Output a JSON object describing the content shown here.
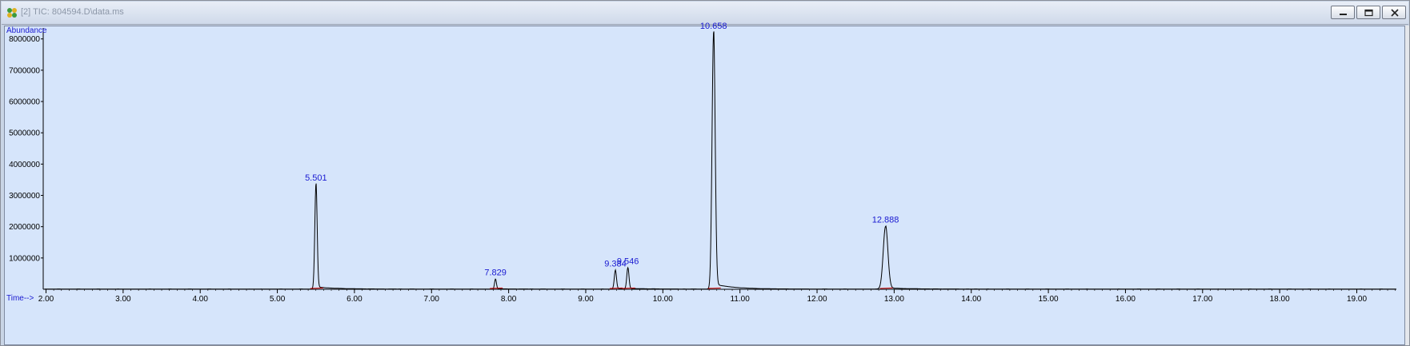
{
  "window": {
    "title": "[2] TIC: 804594.D\\data.ms",
    "icon": "chromatogram-app-icon",
    "controls": [
      "minimize-icon",
      "restore-icon",
      "close-icon"
    ]
  },
  "chart_data": {
    "type": "line",
    "ylabel": "Abundance",
    "xlabel": "Time-->",
    "xlim": [
      1.9,
      20.1
    ],
    "ylim": [
      0,
      8350000
    ],
    "x_ticks": [
      2.0,
      3.0,
      4.0,
      5.0,
      6.0,
      7.0,
      8.0,
      9.0,
      10.0,
      11.0,
      12.0,
      13.0,
      14.0,
      15.0,
      16.0,
      17.0,
      18.0,
      19.0
    ],
    "x_tick_labels": [
      "2.00",
      "3.00",
      "4.00",
      "5.00",
      "6.00",
      "7.00",
      "8.00",
      "9.00",
      "10.00",
      "11.00",
      "12.00",
      "13.00",
      "14.00",
      "15.00",
      "16.00",
      "17.00",
      "18.00",
      "19.00"
    ],
    "y_ticks": [
      1000000,
      2000000,
      3000000,
      4000000,
      5000000,
      6000000,
      7000000,
      8000000
    ],
    "y_tick_labels": [
      "1000000",
      "2000000",
      "3000000",
      "4000000",
      "5000000",
      "6000000",
      "7000000",
      "8000000"
    ],
    "grid": false,
    "peaks": [
      {
        "label": "5.501",
        "x": 5.501,
        "y": 3350000,
        "w": 0.015
      },
      {
        "label": "7.829",
        "x": 7.829,
        "y": 320000,
        "w": 0.012
      },
      {
        "label": "9.384",
        "x": 9.384,
        "y": 600000,
        "w": 0.014
      },
      {
        "label": "9.546",
        "x": 9.546,
        "y": 680000,
        "w": 0.014
      },
      {
        "label": "10.658",
        "x": 10.658,
        "y": 8200000,
        "w": 0.02
      },
      {
        "label": "12.888",
        "x": 12.888,
        "y": 2000000,
        "w": 0.03
      }
    ],
    "colors": {
      "trace": "#000000",
      "baseline": "#cc0000",
      "labels": "#1a1ad1",
      "background": "#d6e5fb"
    }
  }
}
